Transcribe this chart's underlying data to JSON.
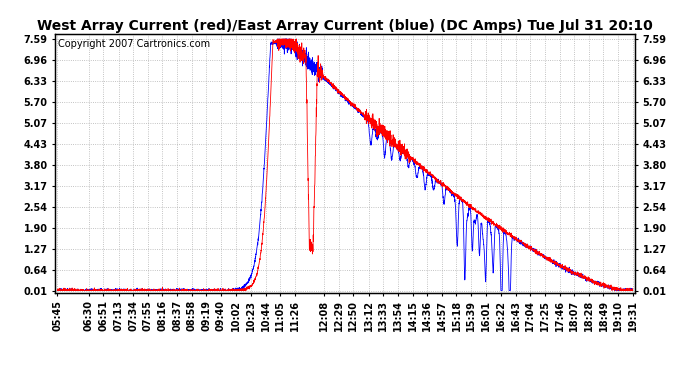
{
  "title": "West Array Current (red)/East Array Current (blue) (DC Amps) Tue Jul 31 20:10",
  "copyright": "Copyright 2007 Cartronics.com",
  "bg_color": "#ffffff",
  "plot_bg_color": "#ffffff",
  "line_color_red": "#ff0000",
  "line_color_blue": "#0000ff",
  "yticks": [
    0.01,
    0.64,
    1.27,
    1.9,
    2.54,
    3.17,
    3.8,
    4.43,
    5.07,
    5.7,
    6.33,
    6.96,
    7.59
  ],
  "ylim_min": -0.05,
  "ylim_max": 7.75,
  "xtick_labels": [
    "05:45",
    "06:30",
    "06:51",
    "07:13",
    "07:34",
    "07:55",
    "08:16",
    "08:37",
    "08:58",
    "09:19",
    "09:40",
    "10:02",
    "10:23",
    "10:44",
    "11:05",
    "11:26",
    "12:08",
    "12:29",
    "12:50",
    "13:12",
    "13:33",
    "13:54",
    "14:15",
    "14:36",
    "14:57",
    "15:18",
    "15:39",
    "16:01",
    "16:22",
    "16:43",
    "17:04",
    "17:25",
    "17:46",
    "18:07",
    "18:28",
    "18:49",
    "19:10",
    "19:31"
  ],
  "grid_color": "#b0b0b0",
  "title_fontsize": 10,
  "tick_fontsize": 7,
  "copyright_fontsize": 7
}
